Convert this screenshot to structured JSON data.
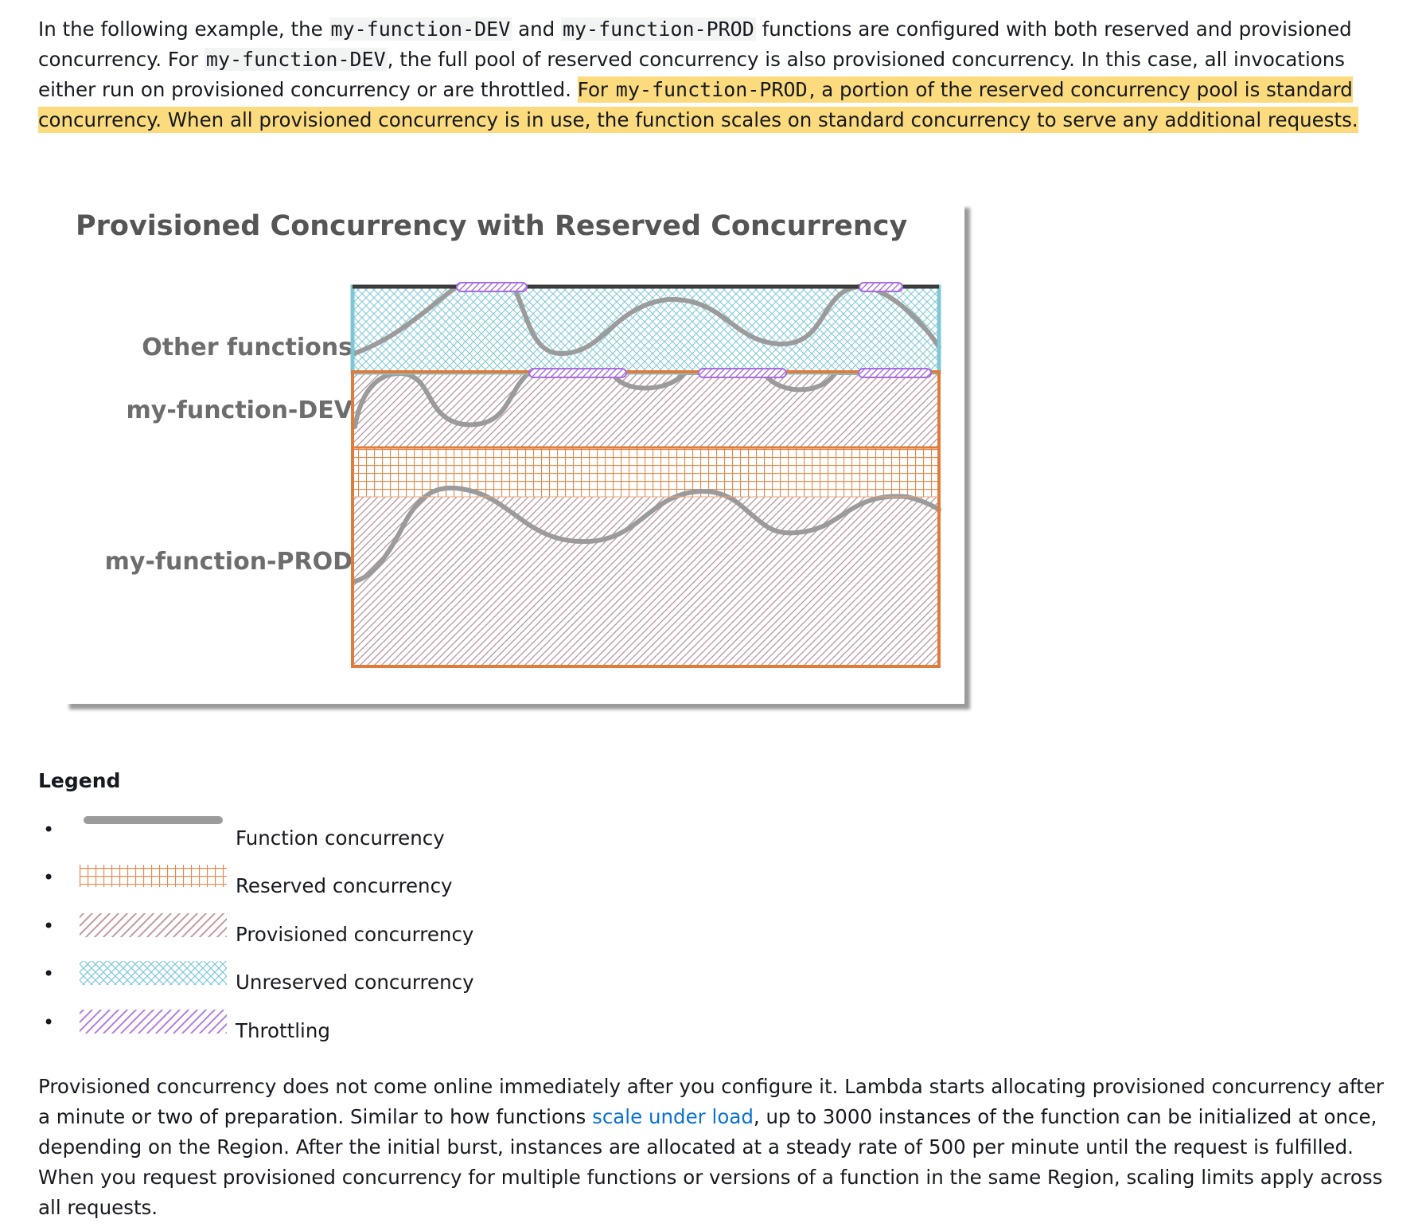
{
  "intro": {
    "t1": "In the following example, the ",
    "c1": "my-function-DEV",
    "t2": " and ",
    "c2": "my-function-PROD",
    "t3": " functions are configured with both reserved and provisioned concurrency. For ",
    "c3": "my-function-DEV",
    "t4": ", the full pool of reserved concurrency is also provisioned concurrency. In this case, all invocations either run on provisioned concurrency or are throttled. ",
    "h1": "For ",
    "hc": "my-function-PROD",
    "h2": ", a portion of the reserved concurrency pool is standard concurrency. When all provisioned concurrency is in use, the function scales on standard concurrency to serve any additional requests."
  },
  "diagram": {
    "title": "Provisioned Concurrency with Reserved Concurrency",
    "labels": {
      "other": "Other functions",
      "dev": "my-function-DEV",
      "prod": "my-function-PROD"
    },
    "colors": {
      "unreserved": "#7ec8d6",
      "reserved": "#e07b39",
      "provisioned": "#c29aa0",
      "throttling": "#b07ee0",
      "concurrency": "#9b9b9b"
    }
  },
  "legend": {
    "title": "Legend",
    "items": [
      {
        "label": "Function concurrency"
      },
      {
        "label": "Reserved concurrency"
      },
      {
        "label": "Provisioned concurrency"
      },
      {
        "label": "Unreserved concurrency"
      },
      {
        "label": "Throttling"
      }
    ]
  },
  "outro": {
    "t1": "Provisioned concurrency does not come online immediately after you configure it. Lambda starts allocating provisioned concurrency after a minute or two of preparation. Similar to how functions ",
    "link": "scale under load",
    "t2": ", up to 3000 instances of the function can be initialized at once, depending on the Region. After the initial burst, instances are allocated at a steady rate of 500 per minute until the request is fulfilled. When you request provisioned concurrency for multiple functions or versions of a function in the same Region, scaling limits apply across all requests."
  }
}
